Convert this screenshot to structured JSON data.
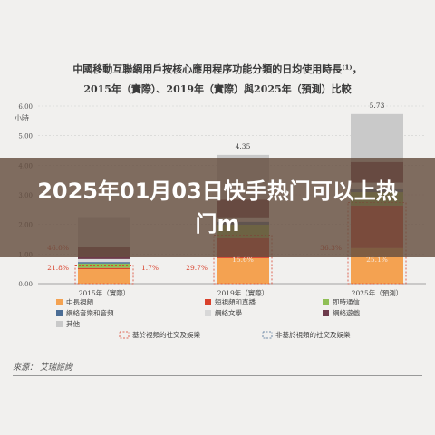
{
  "overlay_title": "2025年01月03日快手热门可以上热门m",
  "source": {
    "label": "來源：",
    "text": "艾瑞諮詢"
  },
  "chart_data": {
    "type": "bar",
    "title": "中國移動互聯網用戶按核心應用程序功能分類的日均使用時長⁽¹⁾，",
    "subtitle": "2015年（實際）、2019年（實際）與2025年（預測）比較",
    "ylabel": "小時",
    "ylim": [
      0,
      6
    ],
    "yticks": [
      "0.00",
      "1.00",
      "2.00",
      "3.00",
      "4.00",
      "5.00",
      "6.00"
    ],
    "categories": [
      "2015年（實際）",
      "2019年（實際）",
      "2025年（預測）"
    ],
    "totals": [
      "",
      "4.35",
      "5.73"
    ],
    "series": [
      {
        "name": "中長視頻",
        "color": "#f4a251",
        "values": [
          0.49,
          0.86,
          1.2
        ]
      },
      {
        "name": "短視頻和直播",
        "color": "#d9412c",
        "values": [
          0.04,
          0.68,
          1.44
        ]
      },
      {
        "name": "即時通信",
        "color": "#8fbf55",
        "values": [
          0.15,
          0.45,
          0.45
        ]
      },
      {
        "name": "網絡音樂和音頻",
        "color": "#4b6d95",
        "values": [
          0.05,
          0.1,
          0.12
        ]
      },
      {
        "name": "網絡文學",
        "color": "#d8d8d8",
        "values": [
          0.1,
          0.15,
          0.2
        ]
      },
      {
        "name": "網絡遊戲",
        "color": "#6d3b4b",
        "values": [
          0.4,
          0.6,
          0.7
        ]
      },
      {
        "name": "其他",
        "color": "#c9c9c9",
        "values": [
          1.02,
          1.51,
          1.62
        ]
      }
    ],
    "pct_labels": {
      "left_top": [
        "46.0%",
        "",
        "36.3%"
      ],
      "left_bottom": [
        "21.8%",
        "29.7%",
        ""
      ],
      "right_inner": [
        "",
        "15.6%",
        "25.1%"
      ],
      "right_outer": [
        "1.7%",
        "",
        ""
      ]
    },
    "bracket_legend": [
      {
        "label": "基於視頻的社交及娛樂",
        "color": "#d9412c"
      },
      {
        "label": "非基於視頻的社交及娛樂",
        "color": "#4b6d95"
      }
    ]
  }
}
